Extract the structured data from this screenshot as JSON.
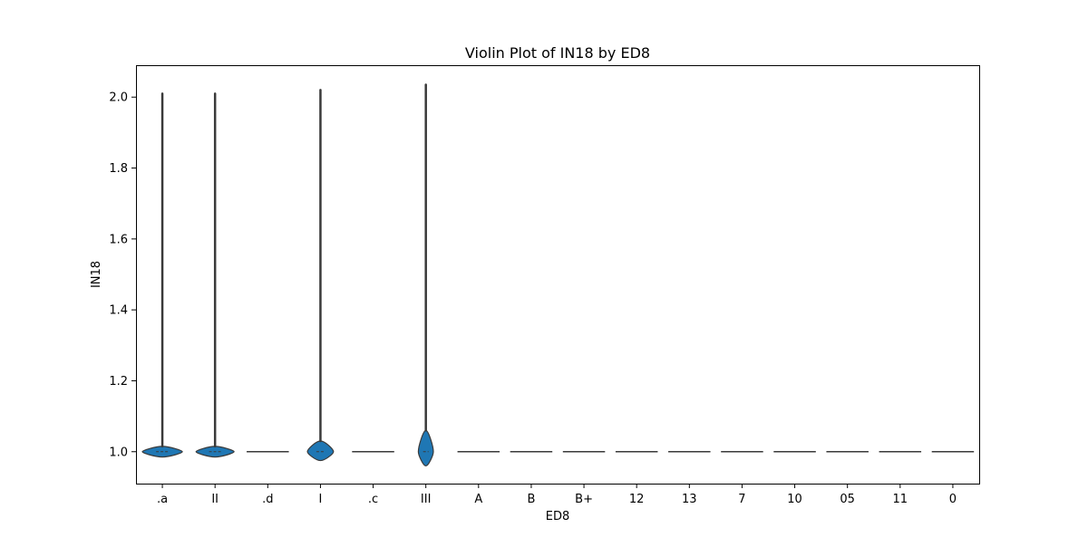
{
  "chart_data": {
    "type": "violin",
    "title": "Violin Plot of IN18 by ED8",
    "xlabel": "ED8",
    "ylabel": "IN18",
    "categories": [
      ".a",
      "II",
      ".d",
      "I",
      ".c",
      "III",
      "A",
      "B",
      "B+",
      "12",
      "13",
      "7",
      "10",
      "05",
      "11",
      "0"
    ],
    "ylim": [
      0.91,
      2.09
    ],
    "yticks": [
      1.0,
      1.2,
      1.4,
      1.6,
      1.8,
      2.0
    ],
    "ytick_labels": [
      "1.0",
      "1.2",
      "1.4",
      "1.6",
      "1.8",
      "2.0"
    ],
    "grid": false,
    "violins": [
      {
        "category": ".a",
        "min": 1.0,
        "max": 2.01,
        "body_low": 0.985,
        "body_high": 1.015,
        "median": 1.0,
        "width": 0.8
      },
      {
        "category": "II",
        "min": 1.0,
        "max": 2.01,
        "body_low": 0.985,
        "body_high": 1.015,
        "median": 1.0,
        "width": 0.76
      },
      {
        "category": ".d",
        "min": 1.0,
        "max": 1.0,
        "body_low": 1.0,
        "body_high": 1.0,
        "median": 1.0,
        "width": 0.8
      },
      {
        "category": "I",
        "min": 1.0,
        "max": 2.02,
        "body_low": 0.975,
        "body_high": 1.03,
        "median": 1.0,
        "width": 0.52
      },
      {
        "category": ".c",
        "min": 1.0,
        "max": 1.0,
        "body_low": 1.0,
        "body_high": 1.0,
        "median": 1.0,
        "width": 0.8
      },
      {
        "category": "III",
        "min": 1.0,
        "max": 2.035,
        "body_low": 0.96,
        "body_high": 1.06,
        "median": 1.0,
        "width": 0.3
      },
      {
        "category": "A",
        "min": 1.0,
        "max": 1.0,
        "body_low": 1.0,
        "body_high": 1.0,
        "median": 1.0,
        "width": 0.8
      },
      {
        "category": "B",
        "min": 1.0,
        "max": 1.0,
        "body_low": 1.0,
        "body_high": 1.0,
        "median": 1.0,
        "width": 0.8
      },
      {
        "category": "B+",
        "min": 1.0,
        "max": 1.0,
        "body_low": 1.0,
        "body_high": 1.0,
        "median": 1.0,
        "width": 0.8
      },
      {
        "category": "12",
        "min": 1.0,
        "max": 1.0,
        "body_low": 1.0,
        "body_high": 1.0,
        "median": 1.0,
        "width": 0.8
      },
      {
        "category": "13",
        "min": 1.0,
        "max": 1.0,
        "body_low": 1.0,
        "body_high": 1.0,
        "median": 1.0,
        "width": 0.8
      },
      {
        "category": "7",
        "min": 1.0,
        "max": 1.0,
        "body_low": 1.0,
        "body_high": 1.0,
        "median": 1.0,
        "width": 0.8
      },
      {
        "category": "10",
        "min": 1.0,
        "max": 1.0,
        "body_low": 1.0,
        "body_high": 1.0,
        "median": 1.0,
        "width": 0.8
      },
      {
        "category": "05",
        "min": 1.0,
        "max": 1.0,
        "body_low": 1.0,
        "body_high": 1.0,
        "median": 1.0,
        "width": 0.8
      },
      {
        "category": "11",
        "min": 1.0,
        "max": 1.0,
        "body_low": 1.0,
        "body_high": 1.0,
        "median": 1.0,
        "width": 0.8
      },
      {
        "category": "0",
        "min": 1.0,
        "max": 1.0,
        "body_low": 1.0,
        "body_high": 1.0,
        "median": 1.0,
        "width": 0.8
      }
    ],
    "colors": {
      "fill": "#1f77b4",
      "edge": "#3a3a3a",
      "axis": "#000000"
    }
  }
}
